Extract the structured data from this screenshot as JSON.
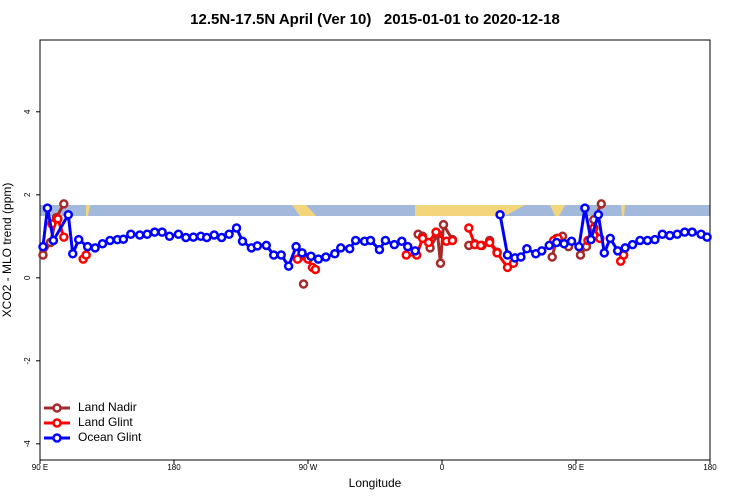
{
  "chart_data": {
    "type": "line",
    "title": "12.5N-17.5N April (Ver 10)   2015-01-01 to 2020-12-18",
    "x_label": "Longitude",
    "y_label": "XCO2 - MLO trend (ppm)",
    "xlim": [
      90,
      540
    ],
    "ylim": [
      -4.39,
      5.73
    ],
    "xticks": [
      {
        "value": 90,
        "label": "90 E"
      },
      {
        "value": 180,
        "label": "180"
      },
      {
        "value": 270,
        "label": "90 W"
      },
      {
        "value": 360,
        "label": "0"
      },
      {
        "value": 450,
        "label": "90 E"
      },
      {
        "value": 540,
        "label": "180"
      }
    ],
    "yticks": [
      -4,
      -2,
      0,
      2,
      4
    ],
    "legend": "bottom-left",
    "series": [
      {
        "name": "Land Nadir",
        "color": "#a52a2a",
        "x": [
          92,
          97,
          101,
          106,
          null,
          267,
          null,
          344,
          347,
          352,
          357,
          359,
          361,
          367,
          null,
          378,
          382,
          387,
          392,
          397,
          null,
          434,
          437,
          441,
          445,
          null,
          453,
          457,
          462,
          467
        ],
        "values": [
          0.55,
          0.85,
          1.45,
          1.78,
          null,
          -0.15,
          null,
          1.05,
          1.0,
          0.72,
          1.05,
          0.35,
          1.28,
          0.92,
          null,
          0.78,
          0.82,
          0.78,
          0.9,
          0.62,
          null,
          0.5,
          0.95,
          1.0,
          0.75,
          null,
          0.55,
          0.75,
          1.4,
          1.78
        ]
      },
      {
        "name": "Land Glint",
        "color": "#ff0000",
        "x": [
          98,
          102,
          106,
          null,
          119,
          121,
          null,
          263,
          270,
          273,
          275,
          null,
          336,
          343,
          347,
          351,
          356,
          363,
          367,
          null,
          378,
          382,
          386,
          392,
          397,
          404,
          408,
          null,
          435,
          438,
          null,
          458,
          462,
          466,
          null,
          480,
          482
        ],
        "values": [
          1.3,
          1.42,
          0.98,
          null,
          0.45,
          0.55,
          null,
          0.45,
          0.45,
          0.25,
          0.2,
          null,
          0.55,
          0.55,
          0.95,
          0.85,
          1.1,
          0.88,
          0.9,
          null,
          1.2,
          0.8,
          0.78,
          0.85,
          0.6,
          0.25,
          0.35,
          null,
          0.9,
          0.95,
          null,
          0.9,
          1.2,
          0.95,
          null,
          0.4,
          0.55
        ]
      },
      {
        "name": "Ocean Glint",
        "color": "#0000ff",
        "x": [
          92,
          95,
          99,
          109,
          112,
          116,
          122,
          127,
          132,
          137,
          142,
          146,
          151,
          157,
          162,
          167,
          172,
          177,
          183,
          188,
          193,
          198,
          202,
          207,
          212,
          217,
          222,
          226,
          232,
          236,
          242,
          247,
          252,
          257,
          262,
          266,
          272,
          277,
          282,
          288,
          292,
          298,
          302,
          308,
          312,
          318,
          322,
          328,
          333,
          337,
          342,
          null,
          399,
          404,
          409,
          413,
          417,
          423,
          427,
          432,
          437,
          442,
          447,
          452,
          456,
          460,
          465,
          469,
          473,
          478,
          483,
          488,
          493,
          498,
          503,
          508,
          513,
          518,
          523,
          528,
          534,
          538
        ],
        "values": [
          0.75,
          1.68,
          0.9,
          1.52,
          0.58,
          0.92,
          0.75,
          0.72,
          0.82,
          0.9,
          0.92,
          0.93,
          1.05,
          1.03,
          1.05,
          1.1,
          1.1,
          1.0,
          1.05,
          0.97,
          0.98,
          1.0,
          0.97,
          1.03,
          0.97,
          1.05,
          1.2,
          0.88,
          0.72,
          0.77,
          0.78,
          0.55,
          0.55,
          0.28,
          0.75,
          0.6,
          0.52,
          0.45,
          0.5,
          0.58,
          0.72,
          0.7,
          0.9,
          0.88,
          0.9,
          0.68,
          0.9,
          0.8,
          0.88,
          0.75,
          0.65,
          null,
          1.52,
          0.55,
          0.48,
          0.5,
          0.7,
          0.58,
          0.65,
          0.78,
          0.85,
          0.82,
          0.88,
          0.75,
          1.68,
          0.92,
          1.52,
          0.6,
          0.95,
          0.65,
          0.72,
          0.8,
          0.9,
          0.9,
          0.92,
          1.05,
          1.02,
          1.05,
          1.1,
          1.1,
          1.05,
          0.98
        ]
      }
    ]
  }
}
